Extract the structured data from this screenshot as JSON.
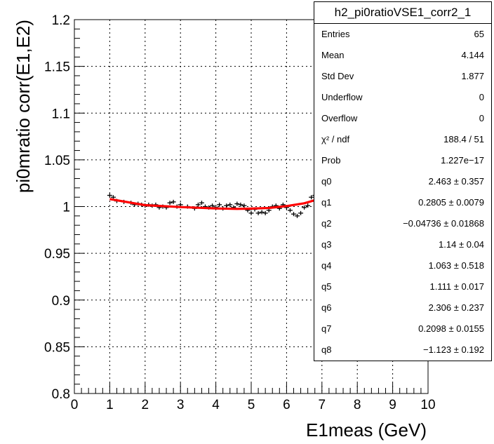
{
  "chart_data": {
    "type": "scatter",
    "title": "",
    "xlabel": "E1meas (GeV)",
    "ylabel": "pi0mratio corr(E1,E2)",
    "xlim": [
      0,
      10
    ],
    "ylim": [
      0.8,
      1.2
    ],
    "x_ticks": [
      "0",
      "1",
      "2",
      "3",
      "4",
      "5",
      "6",
      "7",
      "8",
      "9",
      "10"
    ],
    "y_ticks": [
      "0.8",
      "0.85",
      "0.9",
      "0.95",
      "1",
      "1.05",
      "1.1",
      "1.15",
      "1.2"
    ],
    "grid": true,
    "colors": {
      "points": "#000000",
      "fit": "#ff0000"
    },
    "series": [
      {
        "x": [
          1.0,
          1.1,
          1.2,
          1.4,
          1.6,
          1.7,
          1.8,
          1.9,
          2.0,
          2.1,
          2.2,
          2.3,
          2.4,
          2.5,
          2.6,
          2.7,
          2.8,
          2.9,
          3.0,
          3.2,
          3.4,
          3.5,
          3.6,
          3.7,
          3.8,
          3.9,
          4.0,
          4.1,
          4.2,
          4.3,
          4.4,
          4.5,
          4.6,
          4.7,
          4.8,
          4.9,
          5.0,
          5.1,
          5.2,
          5.3,
          5.4,
          5.5,
          5.6,
          5.7,
          5.8,
          5.9,
          6.0,
          6.1,
          6.2,
          6.3,
          6.4,
          6.5,
          6.6,
          6.7,
          6.8,
          6.9,
          7.0,
          7.1,
          7.2,
          7.3,
          7.4,
          7.5,
          7.6,
          7.7,
          7.8
        ],
        "y": [
          1.012,
          1.01,
          1.006,
          1.005,
          1.004,
          1.002,
          1.003,
          1.002,
          1.001,
          1.002,
          1.001,
          1.002,
          0.999,
          1.0,
          0.999,
          1.004,
          1.005,
          1.0,
          1.002,
          1.0,
          0.998,
          1.002,
          1.004,
          1.0,
          0.999,
          1.001,
          0.999,
          1.002,
          0.998,
          1.001,
          1.002,
          0.999,
          1.003,
          1.002,
          1.001,
          0.996,
          0.993,
          0.997,
          0.993,
          0.994,
          0.993,
          0.996,
          1.0,
          1.001,
          0.998,
          1.002,
          0.999,
          0.996,
          0.992,
          0.99,
          0.993,
          0.999,
          1.001,
          1.01,
          1.012,
          1.018,
          1.016,
          1.026,
          1.025,
          1.025,
          1.038,
          1.03,
          1.03,
          1.045,
          1.04
        ]
      }
    ],
    "fit_curve": {
      "x": [
        1.0,
        2.0,
        3.0,
        4.0,
        4.6,
        5.0,
        5.5,
        6.0,
        6.5,
        7.0,
        7.3
      ],
      "y": [
        1.008,
        1.0015,
        0.9995,
        0.998,
        0.9975,
        0.9978,
        0.9985,
        1.0005,
        1.0035,
        1.009,
        1.013
      ]
    }
  },
  "stats_box": {
    "title": "h2_pi0ratioVSE1_corr2_1",
    "rows": [
      {
        "label": "Entries",
        "value": "65"
      },
      {
        "label": "Mean",
        "value": "4.144"
      },
      {
        "label": "Std Dev",
        "value": "1.877"
      },
      {
        "label": "Underflow",
        "value": "0"
      },
      {
        "label": "Overflow",
        "value": "0"
      },
      {
        "label": "χ² / ndf",
        "value": "188.4 / 51"
      },
      {
        "label": "Prob",
        "value": "1.227e−17"
      },
      {
        "label": "q0",
        "value": "2.463 ± 0.357"
      },
      {
        "label": "q1",
        "value": "0.2805 ± 0.0079"
      },
      {
        "label": "q2",
        "value": "−0.04736 ± 0.01868"
      },
      {
        "label": "q3",
        "value": "1.14 ± 0.04"
      },
      {
        "label": "q4",
        "value": "1.063 ± 0.518"
      },
      {
        "label": "q5",
        "value": "1.111 ± 0.017"
      },
      {
        "label": "q6",
        "value": "2.306 ± 0.237"
      },
      {
        "label": "q7",
        "value": "0.2098 ± 0.0155"
      },
      {
        "label": "q8",
        "value": "−1.123 ± 0.192"
      }
    ]
  }
}
